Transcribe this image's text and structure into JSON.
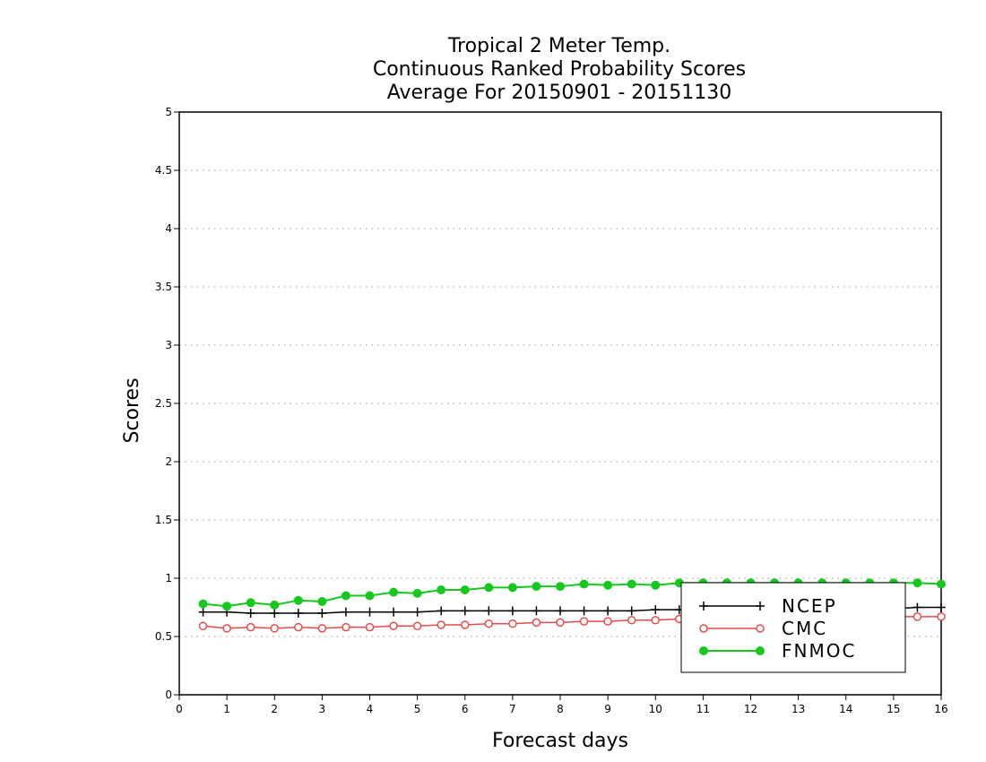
{
  "chart_data": {
    "type": "line",
    "title": [
      "Tropical 2 Meter Temp.",
      "Continuous Ranked Probability Scores",
      "Average For 20150901 - 20151130"
    ],
    "xlabel": "Forecast days",
    "ylabel": "Scores",
    "xlim": [
      0,
      16
    ],
    "ylim": [
      0,
      5
    ],
    "xticks": [
      "0",
      "1",
      "2",
      "3",
      "4",
      "5",
      "6",
      "7",
      "8",
      "9",
      "10",
      "11",
      "12",
      "13",
      "14",
      "15",
      "16"
    ],
    "yticks": [
      "0",
      "0.5",
      "1",
      "1.5",
      "2",
      "2.5",
      "3",
      "3.5",
      "4",
      "4.5",
      "5"
    ],
    "grid": true,
    "legend_position": "bottom-right",
    "x": [
      0.5,
      1,
      1.5,
      2,
      2.5,
      3,
      3.5,
      4,
      4.5,
      5,
      5.5,
      6,
      6.5,
      7,
      7.5,
      8,
      8.5,
      9,
      9.5,
      10,
      10.5,
      11,
      11.5,
      12,
      12.5,
      13,
      13.5,
      14,
      14.5,
      15,
      15.5,
      16
    ],
    "series": [
      {
        "name": "NCEP",
        "color": "#000000",
        "marker": "plus",
        "values": [
          0.71,
          0.71,
          0.7,
          0.7,
          0.7,
          0.7,
          0.71,
          0.71,
          0.71,
          0.71,
          0.72,
          0.72,
          0.72,
          0.72,
          0.72,
          0.72,
          0.72,
          0.72,
          0.72,
          0.73,
          0.73,
          0.73,
          0.73,
          0.73,
          0.73,
          0.73,
          0.74,
          0.74,
          0.74,
          0.74,
          0.75,
          0.75
        ]
      },
      {
        "name": "CMC",
        "color": "#e84b4b",
        "marker": "open-circle",
        "values": [
          0.59,
          0.57,
          0.58,
          0.57,
          0.58,
          0.57,
          0.58,
          0.58,
          0.59,
          0.59,
          0.6,
          0.6,
          0.61,
          0.61,
          0.62,
          0.62,
          0.63,
          0.63,
          0.64,
          0.64,
          0.65,
          0.65,
          0.65,
          0.66,
          0.66,
          0.66,
          0.66,
          0.67,
          0.67,
          0.67,
          0.67,
          0.67
        ]
      },
      {
        "name": "FNMOC",
        "color": "#16c81e",
        "marker": "filled-circle",
        "values": [
          0.78,
          0.76,
          0.79,
          0.77,
          0.81,
          0.8,
          0.85,
          0.85,
          0.88,
          0.87,
          0.9,
          0.9,
          0.92,
          0.92,
          0.93,
          0.93,
          0.95,
          0.94,
          0.95,
          0.94,
          0.96,
          0.96,
          0.96,
          0.96,
          0.96,
          0.96,
          0.96,
          0.96,
          0.96,
          0.96,
          0.96,
          0.95
        ]
      }
    ]
  }
}
